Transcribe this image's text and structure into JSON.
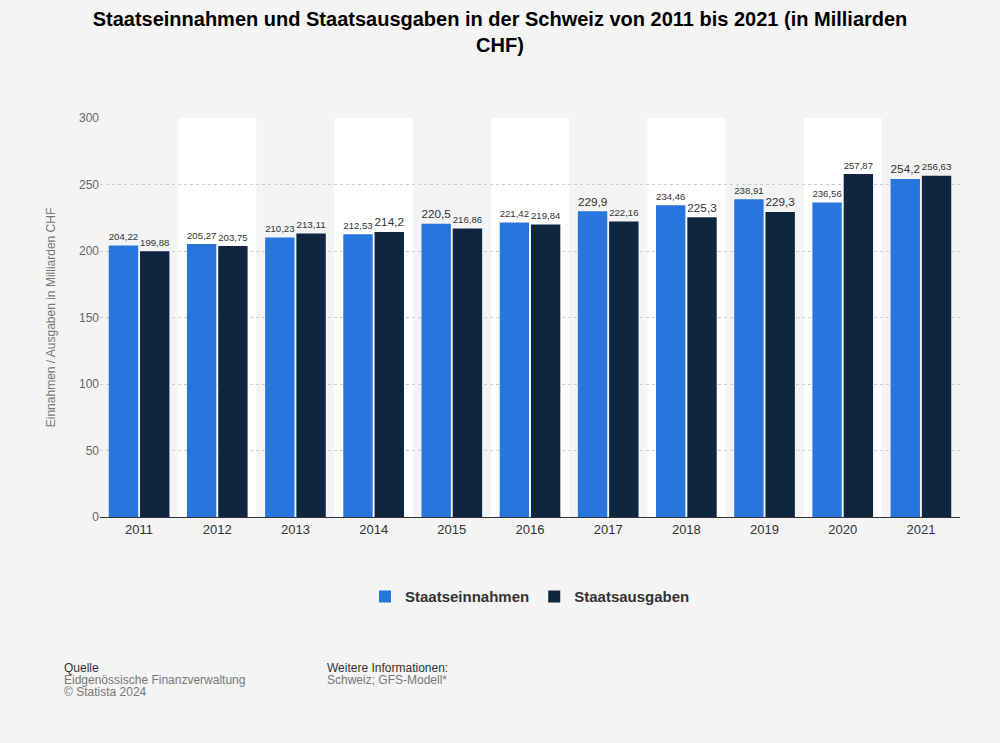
{
  "chart_data": {
    "type": "bar",
    "title": "Staatseinnahmen und Staatsausgaben in der Schweiz von 2011 bis 2021 (in Milliarden CHF)",
    "y_label": "Einnahmen / Ausgaben in Milliarden CHF",
    "categories": [
      "2011",
      "2012",
      "2013",
      "2014",
      "2015",
      "2016",
      "2017",
      "2018",
      "2019",
      "2020",
      "2021"
    ],
    "series": [
      {
        "name": "Staatseinnahmen",
        "color": "#2876dd",
        "values": [
          204.22,
          205.27,
          210.23,
          212.53,
          220.5,
          221.42,
          229.9,
          234.46,
          238.91,
          236.56,
          254.2
        ],
        "value_labels": [
          "204,22",
          "205,27",
          "210,23",
          "212,53",
          "220,5",
          "221,42",
          "229,9",
          "234,46",
          "238,91",
          "236,56",
          "254,2"
        ]
      },
      {
        "name": "Staatsausgaben",
        "color": "#0f2640",
        "values": [
          199.88,
          203.75,
          213.11,
          214.2,
          216.86,
          219.84,
          222.16,
          225.3,
          229.3,
          257.87,
          256.63
        ],
        "value_labels": [
          "199,88",
          "203,75",
          "213,11",
          "214,2",
          "216,86",
          "219,84",
          "222,16",
          "225,3",
          "229,3",
          "257,87",
          "256,63"
        ]
      }
    ],
    "ylim": [
      0,
      300
    ],
    "yticks": [
      0,
      50,
      100,
      150,
      200,
      250,
      300
    ],
    "grid": true,
    "legend": "bottom",
    "data_labels": true,
    "annotations": [
      "Quelle",
      "Eidgenössische Finanzverwaltung",
      "© Statista 2024",
      "Weitere Informationen:",
      "Schweiz; GFS-Modell*"
    ]
  }
}
